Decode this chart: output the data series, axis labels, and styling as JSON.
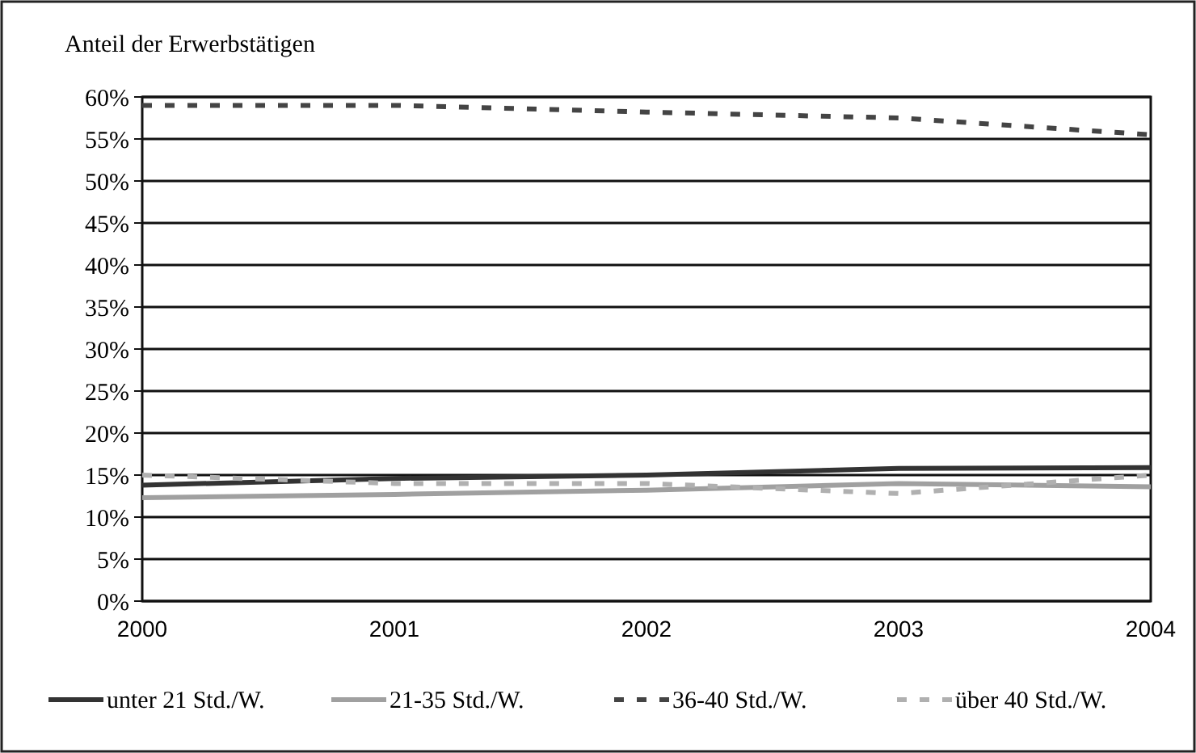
{
  "chart_data": {
    "type": "line",
    "ylabel": "Anteil der Erwerbstätigen",
    "categories": [
      "2000",
      "2001",
      "2002",
      "2003",
      "2004"
    ],
    "series": [
      {
        "name": "unter 21 Std./W.",
        "color": "#333333",
        "line_style": "solid",
        "values": [
          13.8,
          14.6,
          15.0,
          15.8,
          15.9
        ]
      },
      {
        "name": "21-35 Std./W.",
        "color": "#a0a0a0",
        "line_style": "solid",
        "values": [
          12.3,
          12.7,
          13.2,
          14.0,
          13.6
        ]
      },
      {
        "name": "36-40 Std./W.",
        "color": "#444444",
        "line_style": "dashed",
        "values": [
          59.0,
          59.0,
          58.2,
          57.5,
          55.5
        ]
      },
      {
        "name": "über 40 Std./W.",
        "color": "#b0b0b0",
        "line_style": "dashed",
        "values": [
          15.0,
          14.0,
          14.0,
          12.8,
          15.0
        ]
      }
    ],
    "ylim": [
      0,
      60
    ],
    "yticks": [
      {
        "value": 0,
        "label": "0%"
      },
      {
        "value": 5,
        "label": "5%"
      },
      {
        "value": 10,
        "label": "10%"
      },
      {
        "value": 15,
        "label": "15%"
      },
      {
        "value": 20,
        "label": "20%"
      },
      {
        "value": 25,
        "label": "25%"
      },
      {
        "value": 30,
        "label": "30%"
      },
      {
        "value": 35,
        "label": "35%"
      },
      {
        "value": 40,
        "label": "40%"
      },
      {
        "value": 45,
        "label": "45%"
      },
      {
        "value": 50,
        "label": "50%"
      },
      {
        "value": 55,
        "label": "55%"
      },
      {
        "value": 60,
        "label": "60%"
      }
    ],
    "grid": "y",
    "legend": "bottom",
    "marker": "none"
  }
}
